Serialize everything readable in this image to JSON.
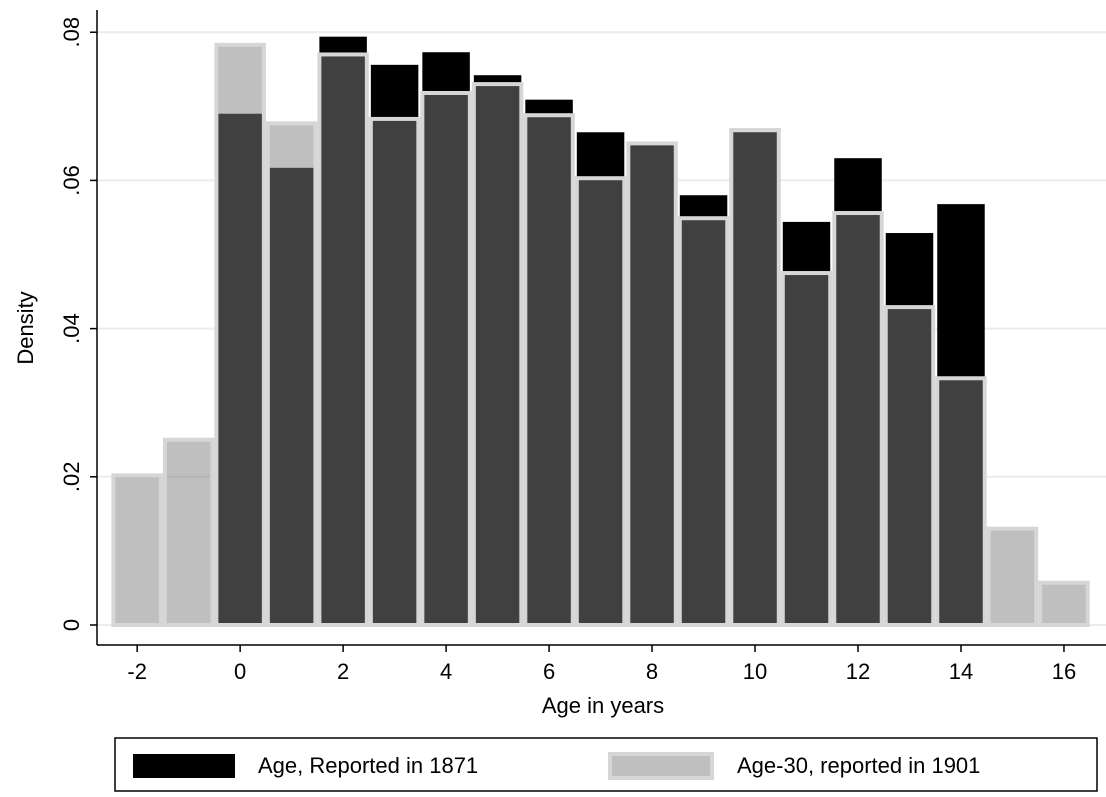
{
  "chart_data": {
    "type": "histogram",
    "x_label": "Age in years",
    "y_label": "Density",
    "xlim": [
      -2.78,
      16.7
    ],
    "ylim": [
      -0.0027,
      0.083
    ],
    "xticks": [
      -2,
      0,
      2,
      4,
      6,
      8,
      10,
      12,
      14,
      16
    ],
    "yticks": [
      0,
      {
        "value": 0.02,
        "label": ".02"
      },
      {
        "value": 0.04,
        "label": ".04"
      },
      {
        "value": 0.06,
        "label": ".06"
      },
      {
        "value": 0.08,
        "label": ".08"
      }
    ],
    "grid": true,
    "legend": "bottom",
    "series": [
      {
        "name": "Age, Reported in 1871",
        "color": "#000000",
        "alpha": 1,
        "bins": [
          -0.5,
          0.5,
          1.5,
          2.5,
          3.5,
          4.5,
          5.5,
          6.5,
          7.5,
          8.5,
          9.5,
          10.5,
          11.5,
          12.5,
          13.5,
          14.5
        ],
        "values": [
          0.069,
          0.0617,
          0.0794,
          0.0756,
          0.0773,
          0.0742,
          0.0709,
          0.0665,
          0.0648,
          0.058,
          0.0665,
          0.0544,
          0.063,
          0.0529,
          0.0568
        ]
      },
      {
        "name": "Age-30, reported in 1901",
        "color": "#808080",
        "alpha": 0.5,
        "bins": [
          -2.5,
          -1.5,
          -0.5,
          0.5,
          1.5,
          2.5,
          3.5,
          4.5,
          5.5,
          6.5,
          7.5,
          8.5,
          9.5,
          10.5,
          11.5,
          12.5,
          13.5,
          14.5,
          15.5,
          16.5
        ],
        "values": [
          0.0202,
          0.025,
          0.0783,
          0.0677,
          0.077,
          0.0683,
          0.0718,
          0.073,
          0.0688,
          0.0603,
          0.065,
          0.0549,
          0.0668,
          0.0475,
          0.0556,
          0.0429,
          0.0333,
          0.013,
          0.0057
        ]
      }
    ]
  }
}
